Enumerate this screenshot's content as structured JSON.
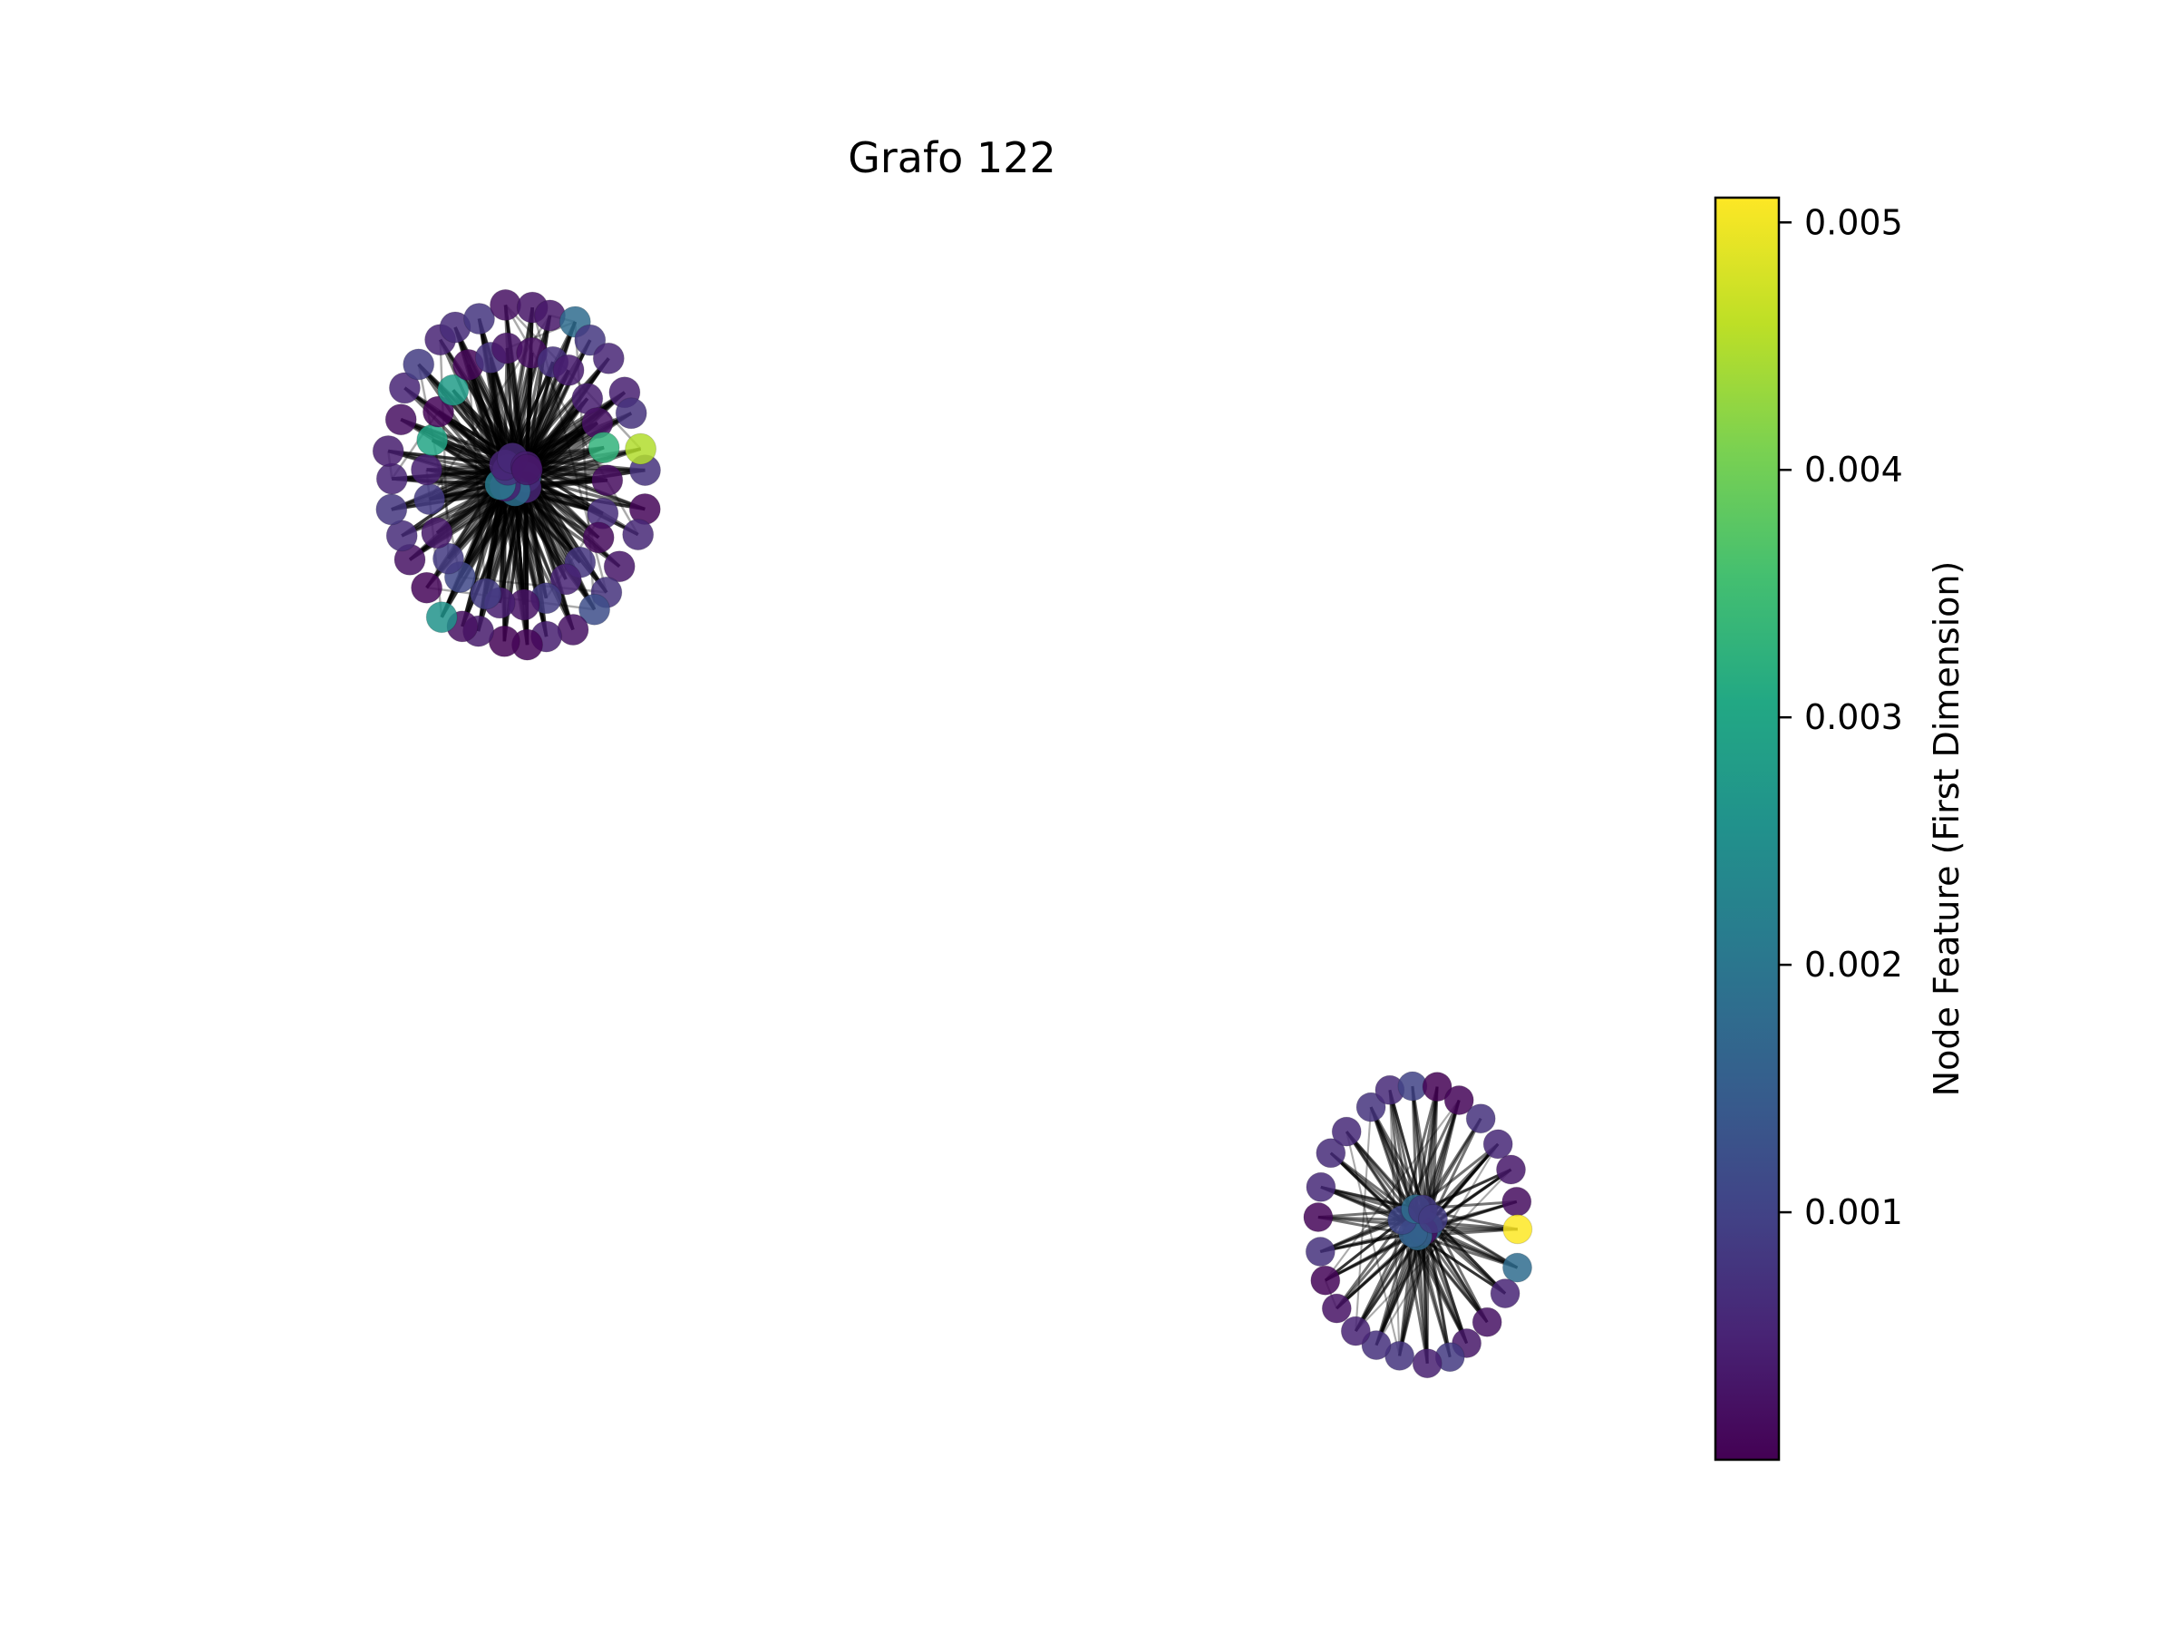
{
  "title": "Grafo 122",
  "colorbar": {
    "label": "Node Feature (First Dimension)",
    "colormap": "viridis",
    "vmin": 0.0,
    "vmax": 0.0051,
    "ticks": [
      {
        "value": 0.001,
        "label": "0.001"
      },
      {
        "value": 0.002,
        "label": "0.002"
      },
      {
        "value": 0.003,
        "label": "0.003"
      },
      {
        "value": 0.004,
        "label": "0.004"
      },
      {
        "value": 0.005,
        "label": "0.005"
      }
    ],
    "stops": [
      "#440154",
      "#482475",
      "#414487",
      "#355f8d",
      "#2a788e",
      "#21918c",
      "#22a884",
      "#44bf70",
      "#7ad151",
      "#bddf26",
      "#fde725"
    ]
  },
  "style": {
    "edge_color": "#000000",
    "node_outline": "#000000"
  }
}
